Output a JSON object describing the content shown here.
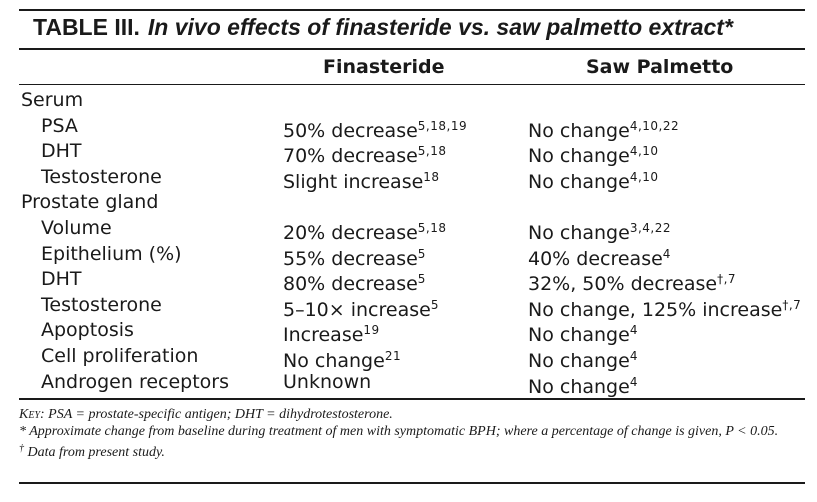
{
  "table": {
    "label": "TABLE III.",
    "caption": "In vivo effects of finasteride vs. saw palmetto extract*",
    "columns": [
      "Finasteride",
      "Saw Palmetto"
    ],
    "rows": [
      {
        "label": "Serum",
        "group": true
      },
      {
        "label": "PSA",
        "fin": "50% decrease",
        "fin_ref": "5,18,19",
        "saw": "No change",
        "saw_ref": "4,10,22"
      },
      {
        "label": "DHT",
        "fin": "70% decrease",
        "fin_ref": "5,18",
        "saw": "No change",
        "saw_ref": "4,10"
      },
      {
        "label": "Testosterone",
        "fin": "Slight increase",
        "fin_ref": "18",
        "saw": "No change",
        "saw_ref": "4,10"
      },
      {
        "label": "Prostate gland",
        "group": true
      },
      {
        "label": "Volume",
        "fin": "20% decrease",
        "fin_ref": "5,18",
        "saw": "No change",
        "saw_ref": "3,4,22"
      },
      {
        "label": "Epithelium (%)",
        "fin": "55% decrease",
        "fin_ref": "5",
        "saw": "40% decrease",
        "saw_ref": "4"
      },
      {
        "label": "DHT",
        "fin": "80% decrease",
        "fin_ref": "5",
        "saw": "32%, 50% decrease",
        "saw_ref": "†,7"
      },
      {
        "label": "Testosterone",
        "fin": "5–10× increase",
        "fin_ref": "5",
        "saw": "No change, 125% increase",
        "saw_ref": "†,7"
      },
      {
        "label": "Apoptosis",
        "fin": "Increase",
        "fin_ref": "19",
        "saw": "No change",
        "saw_ref": "4"
      },
      {
        "label": "Cell proliferation",
        "fin": "No change",
        "fin_ref": "21",
        "saw": "No change",
        "saw_ref": "4"
      },
      {
        "label": "Androgen receptors",
        "fin": "Unknown",
        "fin_ref": "",
        "saw": "No change",
        "saw_ref": "4"
      }
    ],
    "footnotes": {
      "key_label": "Key:",
      "key_text": " PSA = prostate-specific antigen; DHT = dihydrotestosterone.",
      "star_mark": "*",
      "star_text": " Approximate change from baseline during treatment of men with symptomatic BPH; where a percentage of change is given, P < 0.05.",
      "dagger_mark": "†",
      "dagger_text": " Data from present study."
    }
  }
}
